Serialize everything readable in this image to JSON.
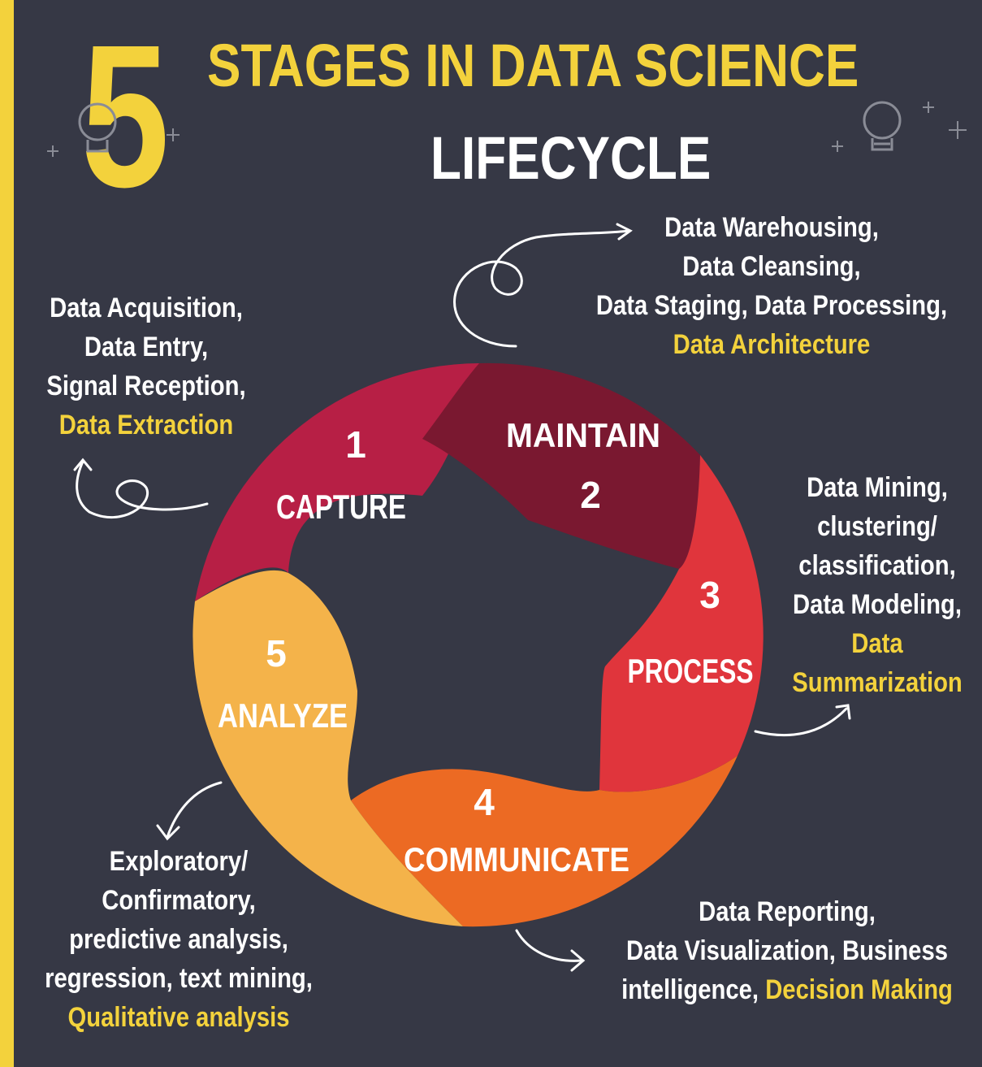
{
  "title": {
    "number": "5",
    "line1": "STAGES IN DATA SCIENCE",
    "line2": "LIFECYCLE"
  },
  "stages": [
    {
      "number": "1",
      "name": "CAPTURE",
      "color": "#b71f45"
    },
    {
      "number": "2",
      "name": "MAINTAIN",
      "color": "#7a1830"
    },
    {
      "number": "3",
      "name": "PROCESS",
      "color": "#e0353c"
    },
    {
      "number": "4",
      "name": "COMMUNICATE",
      "color": "#ec6a23"
    },
    {
      "number": "5",
      "name": "ANALYZE",
      "color": "#f4b34a"
    }
  ],
  "notes": {
    "capture": {
      "lines": [
        "Data Acquisition,",
        "Data Entry,",
        "Signal Reception,"
      ],
      "highlight": "Data Extraction"
    },
    "maintain": {
      "lines": [
        "Data Warehousing,",
        "Data Cleansing,",
        "Data Staging, Data Processing,"
      ],
      "highlight": "Data Architecture"
    },
    "process": {
      "lines": [
        "Data Mining,",
        "clustering/",
        "classification,",
        "Data Modeling,"
      ],
      "highlight_lines": [
        "Data",
        "Summarization"
      ]
    },
    "communicate": {
      "line1": "Data Reporting,",
      "line2": "Data Visualization, Business",
      "line3_plain": "intelligence, ",
      "highlight": "Decision Making"
    },
    "analyze": {
      "lines": [
        "Exploratory/",
        "Confirmatory,",
        "predictive analysis,",
        "regression, text mining,"
      ],
      "highlight": "Qualitative analysis"
    }
  },
  "colors": {
    "background": "#363845",
    "accent": "#f3d23c",
    "text": "#ffffff"
  }
}
